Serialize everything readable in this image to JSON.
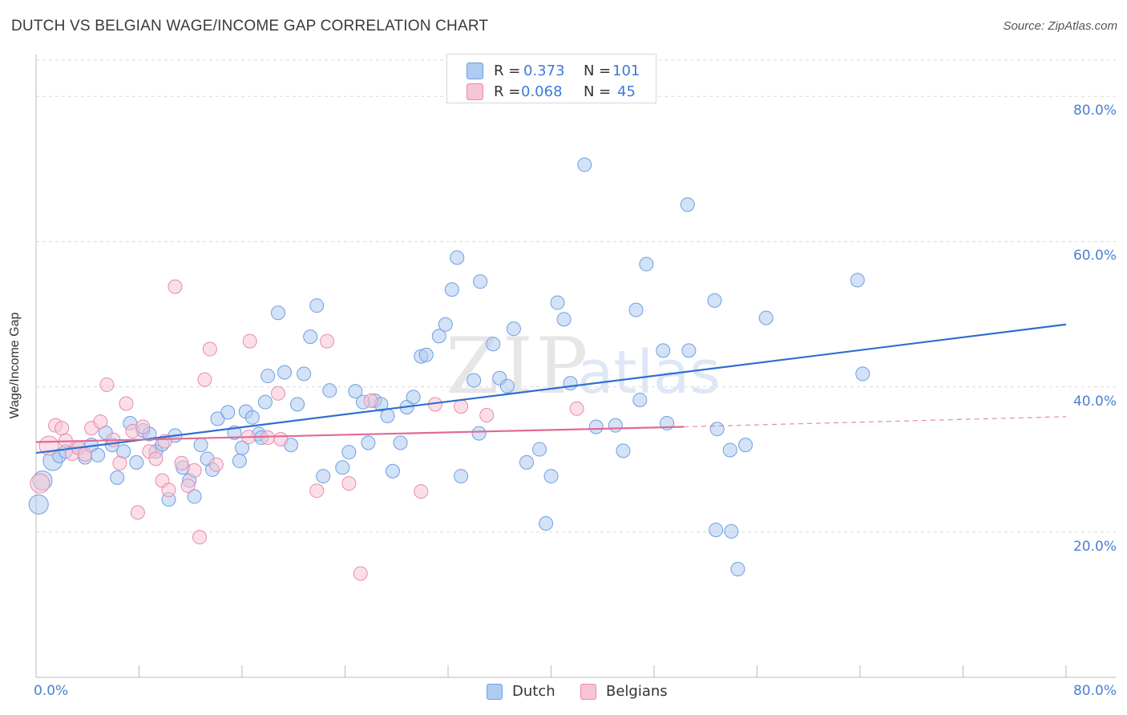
{
  "title": "DUTCH VS BELGIAN WAGE/INCOME GAP CORRELATION CHART",
  "source": "Source: ZipAtlas.com",
  "watermark": {
    "zip": "ZIP",
    "atlas": "atlas"
  },
  "colors": {
    "dutch_fill": "#aecbf0",
    "dutch_stroke": "#6f9fe0",
    "dutch_line": "#2f6fcf",
    "belgian_fill": "#f7c4d4",
    "belgian_stroke": "#e98aab",
    "belgian_line": "#e06a95",
    "tick_label": "#4a7fd4",
    "grid": "#d9d9d9"
  },
  "stats": {
    "r_label": "R =",
    "n_label": "N =",
    "rows": [
      {
        "series": "Dutch",
        "r": "0.373",
        "n": "101"
      },
      {
        "series": "Belgians",
        "r": "0.068",
        "n": "45"
      }
    ]
  },
  "legend": {
    "items": [
      "Dutch",
      "Belgians"
    ]
  },
  "chart_data": {
    "type": "scatter",
    "title": "DUTCH VS BELGIAN WAGE/INCOME GAP CORRELATION CHART",
    "xlabel": "",
    "ylabel": "Wage/Income Gap",
    "xlim": [
      0,
      80
    ],
    "ylim": [
      0,
      85
    ],
    "x_tick_labels": [
      "0.0%",
      "80.0%"
    ],
    "y_tick_labels": [
      "20.0%",
      "40.0%",
      "60.0%",
      "80.0%"
    ],
    "y_ticks": [
      20,
      40,
      60,
      80
    ],
    "grid": true,
    "legend_position": "bottom",
    "series": [
      {
        "name": "Dutch",
        "trend": {
          "x": [
            0,
            80
          ],
          "y": [
            30.9,
            48.6
          ]
        },
        "points": [
          [
            0.2,
            23.8
          ],
          [
            0.5,
            27.1
          ],
          [
            1.3,
            29.8
          ],
          [
            1.8,
            30.5
          ],
          [
            2.3,
            31.1
          ],
          [
            3.3,
            31.6
          ],
          [
            3.8,
            30.3
          ],
          [
            4.3,
            32.0
          ],
          [
            4.8,
            30.6
          ],
          [
            5.4,
            33.7
          ],
          [
            5.9,
            32.0
          ],
          [
            6.3,
            27.5
          ],
          [
            6.8,
            31.1
          ],
          [
            7.3,
            35.0
          ],
          [
            7.8,
            29.6
          ],
          [
            8.3,
            34.0
          ],
          [
            8.8,
            33.5
          ],
          [
            9.3,
            31.1
          ],
          [
            9.8,
            32.1
          ],
          [
            10.3,
            24.5
          ],
          [
            10.8,
            33.3
          ],
          [
            11.4,
            28.9
          ],
          [
            11.9,
            27.1
          ],
          [
            12.3,
            24.9
          ],
          [
            12.8,
            32.0
          ],
          [
            13.3,
            30.1
          ],
          [
            13.7,
            28.6
          ],
          [
            14.1,
            35.6
          ],
          [
            14.9,
            36.5
          ],
          [
            15.4,
            33.7
          ],
          [
            15.8,
            29.8
          ],
          [
            16.3,
            36.6
          ],
          [
            16.8,
            35.8
          ],
          [
            17.3,
            33.5
          ],
          [
            17.8,
            37.9
          ],
          [
            18.0,
            41.5
          ],
          [
            18.8,
            50.2
          ],
          [
            19.3,
            42.0
          ],
          [
            19.8,
            32.0
          ],
          [
            20.3,
            37.6
          ],
          [
            20.8,
            41.8
          ],
          [
            21.3,
            46.9
          ],
          [
            21.8,
            51.2
          ],
          [
            22.3,
            27.7
          ],
          [
            22.8,
            39.5
          ],
          [
            23.8,
            28.9
          ],
          [
            24.3,
            31.0
          ],
          [
            24.8,
            39.4
          ],
          [
            25.4,
            37.9
          ],
          [
            25.8,
            32.3
          ],
          [
            26.3,
            38.1
          ],
          [
            26.8,
            37.6
          ],
          [
            27.3,
            36.0
          ],
          [
            27.7,
            28.4
          ],
          [
            28.3,
            32.3
          ],
          [
            28.8,
            37.2
          ],
          [
            29.3,
            38.6
          ],
          [
            29.9,
            44.2
          ],
          [
            30.3,
            44.4
          ],
          [
            31.3,
            47.0
          ],
          [
            31.8,
            48.6
          ],
          [
            32.3,
            53.4
          ],
          [
            32.7,
            57.8
          ],
          [
            33.0,
            27.7
          ],
          [
            34.0,
            40.9
          ],
          [
            34.4,
            33.6
          ],
          [
            34.5,
            54.5
          ],
          [
            35.5,
            45.9
          ],
          [
            36.0,
            41.2
          ],
          [
            36.6,
            40.1
          ],
          [
            37.1,
            48.0
          ],
          [
            38.1,
            29.6
          ],
          [
            39.1,
            31.4
          ],
          [
            39.6,
            21.2
          ],
          [
            40.0,
            27.7
          ],
          [
            40.5,
            51.6
          ],
          [
            41.0,
            49.3
          ],
          [
            41.5,
            40.5
          ],
          [
            42.6,
            70.6
          ],
          [
            43.5,
            34.5
          ],
          [
            45.0,
            34.7
          ],
          [
            45.6,
            31.2
          ],
          [
            46.6,
            50.6
          ],
          [
            46.9,
            38.2
          ],
          [
            47.4,
            56.9
          ],
          [
            48.7,
            45.0
          ],
          [
            49.0,
            35.0
          ],
          [
            50.6,
            65.1
          ],
          [
            50.7,
            45.0
          ],
          [
            52.7,
            51.9
          ],
          [
            52.9,
            34.2
          ],
          [
            52.8,
            20.3
          ],
          [
            53.9,
            31.3
          ],
          [
            54.0,
            20.1
          ],
          [
            54.5,
            14.9
          ],
          [
            55.1,
            32.0
          ],
          [
            56.7,
            49.5
          ],
          [
            63.8,
            54.7
          ],
          [
            64.2,
            41.8
          ],
          [
            17.5,
            33.0
          ],
          [
            16.0,
            31.6
          ]
        ]
      },
      {
        "name": "Belgians",
        "trend": {
          "x": [
            0,
            50.3
          ],
          "y": [
            32.4,
            34.5
          ]
        },
        "trend_dashed": {
          "x": [
            50.3,
            80
          ],
          "y": [
            34.5,
            35.9
          ]
        },
        "points": [
          [
            0.3,
            26.7
          ],
          [
            1.0,
            31.9
          ],
          [
            1.5,
            34.7
          ],
          [
            2.0,
            34.3
          ],
          [
            2.3,
            32.6
          ],
          [
            2.8,
            30.8
          ],
          [
            3.3,
            31.6
          ],
          [
            3.8,
            30.7
          ],
          [
            4.3,
            34.3
          ],
          [
            5.0,
            35.2
          ],
          [
            5.5,
            40.3
          ],
          [
            6.0,
            32.7
          ],
          [
            6.5,
            29.5
          ],
          [
            7.0,
            37.7
          ],
          [
            7.5,
            33.9
          ],
          [
            7.9,
            22.7
          ],
          [
            8.3,
            34.5
          ],
          [
            8.8,
            31.1
          ],
          [
            9.3,
            30.1
          ],
          [
            9.8,
            27.1
          ],
          [
            10.3,
            25.8
          ],
          [
            10.8,
            53.8
          ],
          [
            11.3,
            29.5
          ],
          [
            11.8,
            26.4
          ],
          [
            12.3,
            28.5
          ],
          [
            12.7,
            19.3
          ],
          [
            13.1,
            41.0
          ],
          [
            13.5,
            45.2
          ],
          [
            14.0,
            29.3
          ],
          [
            16.5,
            33.1
          ],
          [
            16.6,
            46.3
          ],
          [
            18.0,
            33.0
          ],
          [
            18.8,
            39.1
          ],
          [
            19.0,
            32.8
          ],
          [
            21.8,
            25.7
          ],
          [
            22.6,
            46.3
          ],
          [
            24.3,
            26.7
          ],
          [
            25.2,
            14.3
          ],
          [
            26.0,
            38.1
          ],
          [
            29.9,
            25.6
          ],
          [
            31.0,
            37.6
          ],
          [
            33.0,
            37.3
          ],
          [
            35.0,
            36.1
          ],
          [
            42.0,
            37.0
          ],
          [
            10.0,
            32.5
          ]
        ]
      }
    ]
  }
}
